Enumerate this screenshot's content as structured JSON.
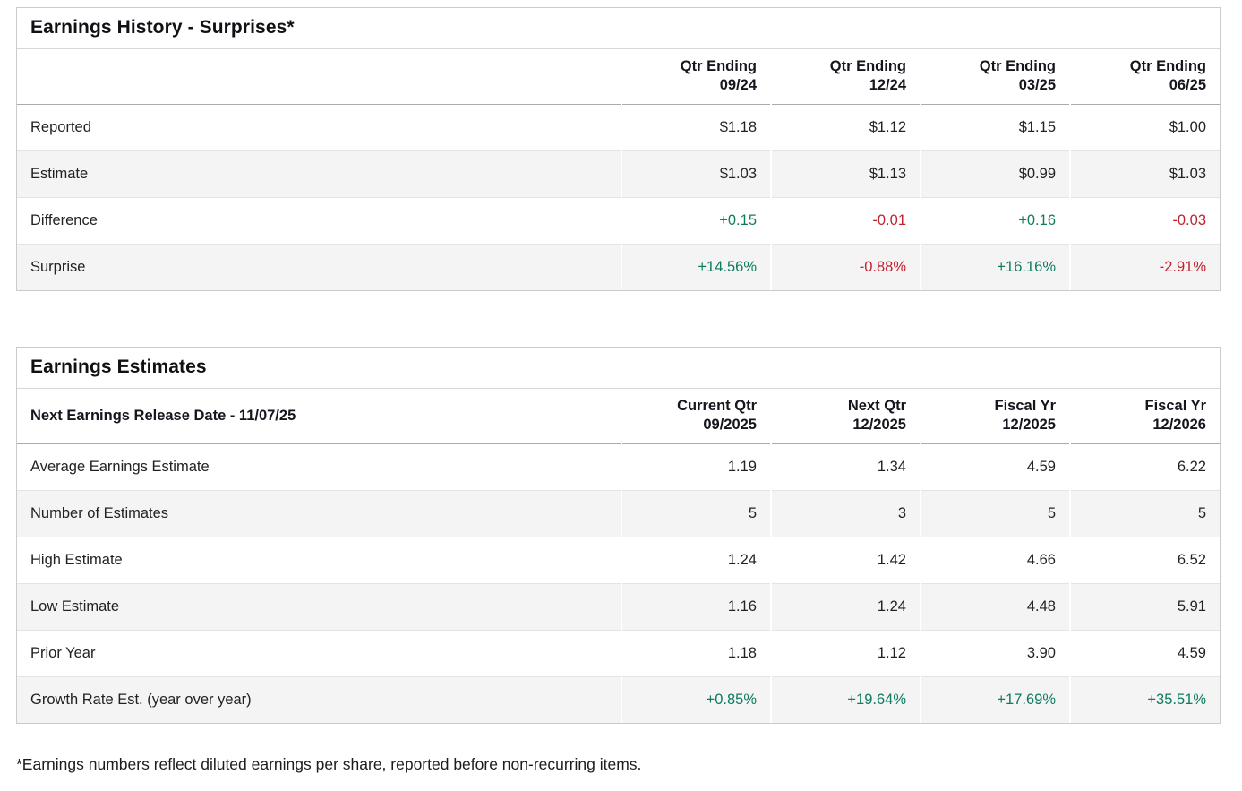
{
  "colors": {
    "positive": "#0f7b60",
    "negative": "#c1222f"
  },
  "earnings_history": {
    "title": "Earnings History - Surprises*",
    "columns": [
      "Qtr Ending\n09/24",
      "Qtr Ending\n12/24",
      "Qtr Ending\n03/25",
      "Qtr Ending\n06/25"
    ],
    "rows": [
      {
        "label": "Reported",
        "values": [
          "$1.18",
          "$1.12",
          "$1.15",
          "$1.00"
        ]
      },
      {
        "label": "Estimate",
        "values": [
          "$1.03",
          "$1.13",
          "$0.99",
          "$1.03"
        ]
      },
      {
        "label": "Difference",
        "values": [
          "+0.15",
          "-0.01",
          "+0.16",
          "-0.03"
        ]
      },
      {
        "label": "Surprise",
        "values": [
          "+14.56%",
          "-0.88%",
          "+16.16%",
          "-2.91%"
        ]
      }
    ]
  },
  "earnings_estimates": {
    "title": "Earnings Estimates",
    "release_label": "Next Earnings Release Date - 11/07/25",
    "columns": [
      "Current Qtr\n09/2025",
      "Next Qtr\n12/2025",
      "Fiscal Yr\n12/2025",
      "Fiscal Yr\n12/2026"
    ],
    "rows": [
      {
        "label": "Average Earnings Estimate",
        "values": [
          "1.19",
          "1.34",
          "4.59",
          "6.22"
        ]
      },
      {
        "label": "Number of Estimates",
        "values": [
          "5",
          "3",
          "5",
          "5"
        ]
      },
      {
        "label": "High Estimate",
        "values": [
          "1.24",
          "1.42",
          "4.66",
          "6.52"
        ]
      },
      {
        "label": "Low Estimate",
        "values": [
          "1.16",
          "1.24",
          "4.48",
          "5.91"
        ]
      },
      {
        "label": "Prior Year",
        "values": [
          "1.18",
          "1.12",
          "3.90",
          "4.59"
        ]
      },
      {
        "label": "Growth Rate Est. (year over year)",
        "values": [
          "+0.85%",
          "+19.64%",
          "+17.69%",
          "+35.51%"
        ]
      }
    ]
  },
  "footnote": "*Earnings numbers reflect diluted earnings per share, reported before non-recurring items."
}
